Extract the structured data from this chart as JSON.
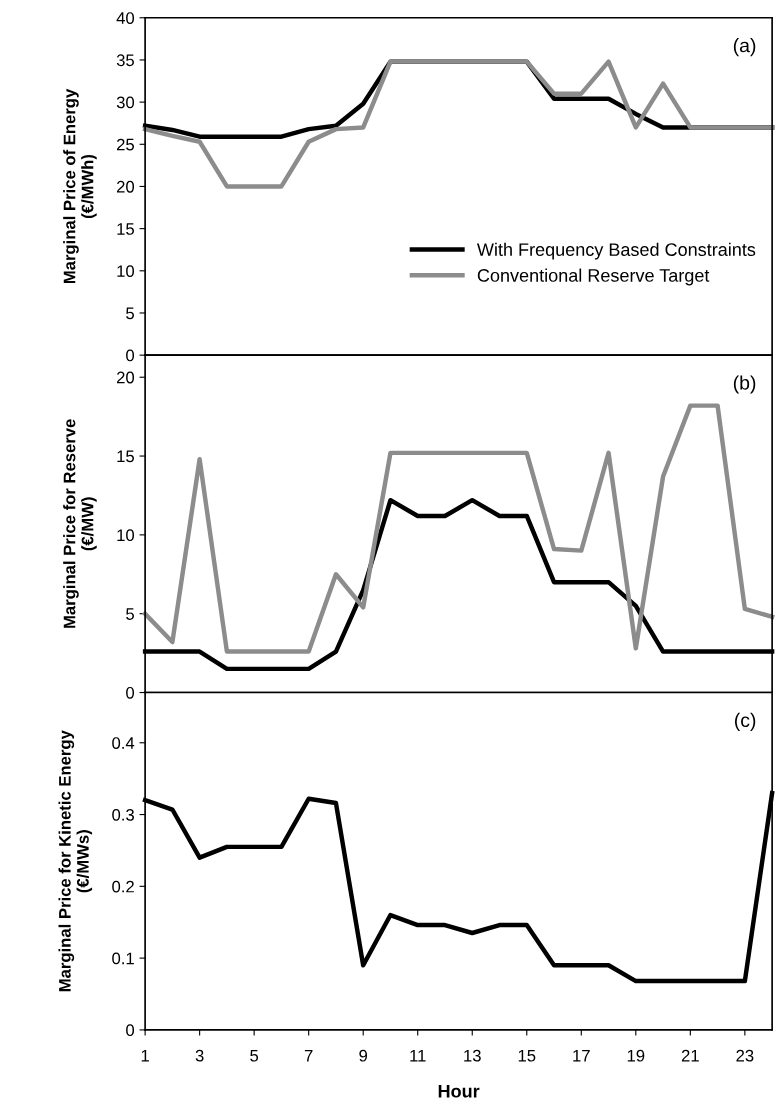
{
  "chart_data": [
    {
      "type": "line",
      "x": [
        1,
        2,
        3,
        4,
        5,
        6,
        7,
        8,
        9,
        10,
        11,
        12,
        13,
        14,
        15,
        16,
        17,
        18,
        19,
        20,
        21,
        22,
        23,
        24
      ],
      "ylabel": "Marginal Price of Energy\n(€/MWh)",
      "xlim": [
        1,
        24
      ],
      "ylim": [
        0,
        40
      ],
      "yticks": [
        0,
        5,
        10,
        15,
        20,
        25,
        30,
        35,
        40
      ],
      "tick_labels": "y",
      "legend": "right",
      "annotations": [
        "(a)"
      ],
      "series": [
        {
          "name": "With Frequency Based Constraints",
          "color": "#000000",
          "values": [
            27.2,
            26.7,
            25.9,
            25.9,
            25.9,
            25.9,
            26.8,
            27.2,
            29.8,
            34.8,
            34.8,
            34.8,
            34.8,
            34.8,
            34.8,
            30.4,
            30.4,
            30.4,
            28.6,
            27,
            27,
            27,
            27,
            27
          ]
        },
        {
          "name": "Conventional Reserve Target",
          "color": "#8c8c8c",
          "values": [
            26.8,
            26,
            25.3,
            20,
            20,
            20,
            25.3,
            26.8,
            27,
            34.8,
            34.8,
            34.8,
            34.8,
            34.8,
            34.8,
            31,
            31,
            34.8,
            27,
            32.2,
            27,
            27,
            27,
            27
          ]
        }
      ]
    },
    {
      "type": "line",
      "x": [
        1,
        2,
        3,
        4,
        5,
        6,
        7,
        8,
        9,
        10,
        11,
        12,
        13,
        14,
        15,
        16,
        17,
        18,
        19,
        20,
        21,
        22,
        23,
        24
      ],
      "ylabel": "Marginal Price for Reserve\n(€/MW)",
      "xlim": [
        1,
        24
      ],
      "ylim": [
        0,
        21.4
      ],
      "yticks": [
        0,
        5,
        10,
        15,
        20
      ],
      "tick_labels": "y",
      "annotations": [
        "(b)"
      ],
      "series": [
        {
          "color": "#000000",
          "values": [
            2.6,
            2.6,
            2.6,
            1.5,
            1.5,
            1.5,
            1.5,
            2.6,
            6.5,
            12.2,
            11.2,
            11.2,
            12.2,
            11.2,
            11.2,
            7,
            7,
            7,
            5.5,
            2.6,
            2.6,
            2.6,
            2.6,
            2.6
          ]
        },
        {
          "color": "#8c8c8c",
          "values": [
            5,
            3.2,
            14.8,
            2.6,
            2.6,
            2.6,
            2.6,
            7.5,
            5.4,
            15.2,
            15.2,
            15.2,
            15.2,
            15.2,
            15.2,
            9.1,
            9,
            15.2,
            2.8,
            13.7,
            18.2,
            18.2,
            5.3,
            4.8
          ]
        }
      ]
    },
    {
      "type": "line",
      "x": [
        1,
        2,
        3,
        4,
        5,
        6,
        7,
        8,
        9,
        10,
        11,
        12,
        13,
        14,
        15,
        16,
        17,
        18,
        19,
        20,
        21,
        22,
        23,
        24
      ],
      "xlabel": "Hour",
      "ylabel": "Marginal Price for Kinetic Energy\n(€/MWs)",
      "xlim": [
        1,
        24
      ],
      "xticks": [
        1,
        3,
        5,
        7,
        9,
        11,
        13,
        15,
        17,
        19,
        21,
        23
      ],
      "ylim": [
        0,
        0.47
      ],
      "yticks": [
        0,
        0.1,
        0.2,
        0.3,
        0.4
      ],
      "annotations": [
        "(c)"
      ],
      "series": [
        {
          "color": "#000000",
          "values": [
            0.32,
            0.307,
            0.24,
            0.255,
            0.255,
            0.255,
            0.322,
            0.316,
            0.09,
            0.16,
            0.146,
            0.146,
            0.135,
            0.146,
            0.146,
            0.09,
            0.09,
            0.09,
            0.068,
            0.068,
            0.068,
            0.068,
            0.068,
            0.33
          ]
        }
      ]
    }
  ]
}
